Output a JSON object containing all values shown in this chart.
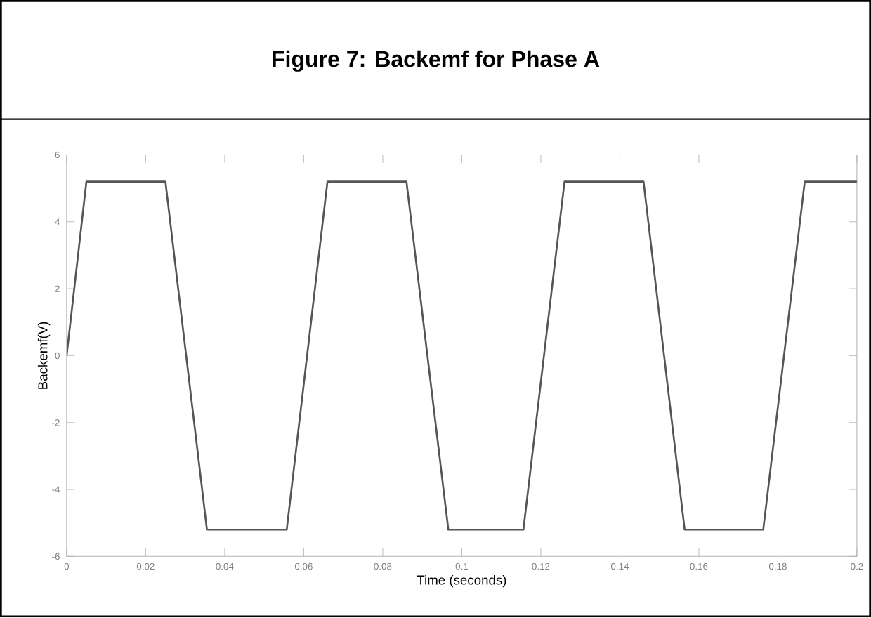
{
  "chart_data": {
    "type": "line",
    "title": "Figure 7: Backemf for Phase A",
    "xlabel": "Time (seconds)",
    "ylabel": "Backemf(V)",
    "x": [
      0,
      0.005,
      0.025,
      0.0355,
      0.0557,
      0.066,
      0.086,
      0.0966,
      0.1156,
      0.126,
      0.146,
      0.1564,
      0.1763,
      0.1868,
      0.2
    ],
    "series": [
      {
        "color": "#555555",
        "values": [
          0,
          5.2,
          5.2,
          -5.2,
          -5.2,
          5.2,
          5.2,
          -5.2,
          -5.2,
          5.2,
          5.2,
          -5.2,
          -5.2,
          5.2,
          5.2
        ]
      }
    ],
    "xlim": [
      0,
      0.2
    ],
    "ylim": [
      -6,
      6
    ],
    "xticks": [
      0,
      0.02,
      0.04,
      0.06,
      0.08,
      0.1,
      0.12,
      0.14,
      0.16,
      0.18,
      0.2
    ],
    "yticks": [
      -6,
      -4,
      -2,
      0,
      2,
      4,
      6
    ],
    "grid": false,
    "marker": "none",
    "line_style": "solid"
  }
}
